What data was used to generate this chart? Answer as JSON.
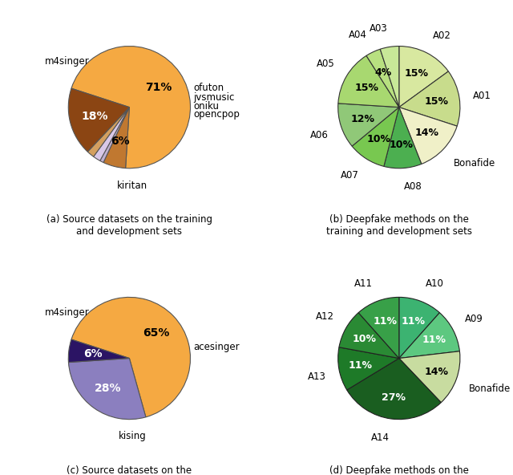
{
  "chart_a": {
    "labels": [
      "m4singer",
      "ofuton",
      "jvsmusic",
      "oniku",
      "opencpop",
      "kiritan"
    ],
    "sizes": [
      71,
      6,
      1,
      2,
      2,
      18
    ],
    "colors": [
      "#F5A942",
      "#C07830",
      "#C0B0D0",
      "#D8C8E8",
      "#D4A060",
      "#8B4513"
    ],
    "pct_labels": [
      "71%",
      "6%",
      "",
      "",
      "",
      "18%"
    ],
    "startangle": 162,
    "title": "(a) Source datasets on the training\nand development sets"
  },
  "chart_b": {
    "labels": [
      "A02",
      "A01",
      "Bonafide",
      "A08",
      "A07",
      "A06",
      "A05",
      "A04",
      "A03"
    ],
    "sizes": [
      15,
      15,
      14,
      10,
      10,
      12,
      15,
      4,
      5
    ],
    "colors": [
      "#D8E8A0",
      "#C8DC8C",
      "#F0F0C8",
      "#4CAF50",
      "#78C850",
      "#90C870",
      "#A8D870",
      "#B8E090",
      "#C8E898"
    ],
    "pct_labels": [
      "15%",
      "15%",
      "14%",
      "10%",
      "10%",
      "12%",
      "15%",
      "4%",
      ""
    ],
    "startangle": 90,
    "title": "(b) Deepfake methods on the\ntraining and development sets"
  },
  "chart_c": {
    "labels": [
      "m4singer",
      "kising",
      "acesinger"
    ],
    "sizes": [
      65,
      28,
      6
    ],
    "colors": [
      "#F5A942",
      "#8B7FBF",
      "#2B1464"
    ],
    "pct_labels": [
      "65%",
      "28%",
      "6%"
    ],
    "startangle": 162,
    "title": "(c) Source datasets on the\nevaluation set"
  },
  "chart_d": {
    "labels": [
      "A10",
      "A09",
      "Bonafide",
      "A14",
      "A13",
      "A12",
      "A11"
    ],
    "sizes": [
      11,
      11,
      14,
      27,
      11,
      10,
      11
    ],
    "colors": [
      "#3CB371",
      "#5DC880",
      "#C8DCA0",
      "#1A5E20",
      "#1E7A28",
      "#2A8A34",
      "#38A048"
    ],
    "pct_labels": [
      "11%",
      "11%",
      "14%",
      "27%",
      "11%",
      "10%",
      "11%"
    ],
    "startangle": 90,
    "title": "(d) Deepfake methods on the\nevaluation set"
  }
}
